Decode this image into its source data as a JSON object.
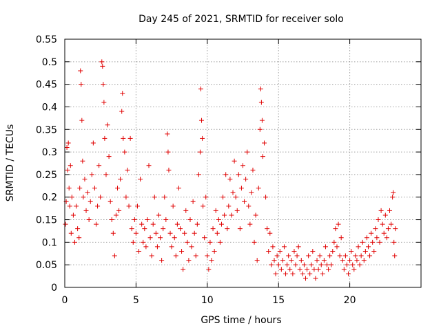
{
  "chart_data": {
    "type": "scatter",
    "title": "Day 245 of 2021, SRMTID for receiver solo",
    "xlabel": "GPS time / hours",
    "ylabel": "SRMTID / TECUs",
    "xlim": [
      0,
      25
    ],
    "ylim": [
      0,
      0.55
    ],
    "x_ticks": [
      0,
      5,
      10,
      15,
      20
    ],
    "x_tick_labels": [
      "0",
      "5",
      "10",
      "15",
      "20"
    ],
    "y_ticks": [
      0,
      0.05,
      0.1,
      0.15,
      0.2,
      0.25,
      0.3,
      0.35,
      0.4,
      0.45,
      0.5,
      0.55
    ],
    "y_tick_labels": [
      "0",
      "0.05",
      "0.1",
      "0.15",
      "0.2",
      "0.25",
      "0.3",
      "0.35",
      "0.4",
      "0.45",
      "0.5",
      "0.55"
    ],
    "grid": true,
    "marker": "+",
    "color": "#e00000",
    "series": [
      {
        "name": "SRMTID",
        "points": [
          [
            0.05,
            0.14
          ],
          [
            0.1,
            0.19
          ],
          [
            0.15,
            0.31
          ],
          [
            0.2,
            0.26
          ],
          [
            0.25,
            0.32
          ],
          [
            0.3,
            0.22
          ],
          [
            0.35,
            0.18
          ],
          [
            0.4,
            0.27
          ],
          [
            0.45,
            0.12
          ],
          [
            0.5,
            0.2
          ],
          [
            0.6,
            0.16
          ],
          [
            0.7,
            0.1
          ],
          [
            0.8,
            0.18
          ],
          [
            0.9,
            0.13
          ],
          [
            1.0,
            0.11
          ],
          [
            1.05,
            0.22
          ],
          [
            1.1,
            0.48
          ],
          [
            1.15,
            0.45
          ],
          [
            1.2,
            0.37
          ],
          [
            1.25,
            0.28
          ],
          [
            1.3,
            0.2
          ],
          [
            1.4,
            0.24
          ],
          [
            1.5,
            0.17
          ],
          [
            1.6,
            0.21
          ],
          [
            1.7,
            0.15
          ],
          [
            1.8,
            0.19
          ],
          [
            1.9,
            0.25
          ],
          [
            2.0,
            0.32
          ],
          [
            2.1,
            0.22
          ],
          [
            2.2,
            0.14
          ],
          [
            2.3,
            0.18
          ],
          [
            2.4,
            0.27
          ],
          [
            2.5,
            0.2
          ],
          [
            2.6,
            0.5
          ],
          [
            2.65,
            0.49
          ],
          [
            2.7,
            0.45
          ],
          [
            2.75,
            0.41
          ],
          [
            2.8,
            0.33
          ],
          [
            2.9,
            0.25
          ],
          [
            3.0,
            0.36
          ],
          [
            3.1,
            0.29
          ],
          [
            3.2,
            0.19
          ],
          [
            3.3,
            0.15
          ],
          [
            3.4,
            0.12
          ],
          [
            3.5,
            0.07
          ],
          [
            3.6,
            0.16
          ],
          [
            3.7,
            0.22
          ],
          [
            3.8,
            0.17
          ],
          [
            3.9,
            0.24
          ],
          [
            4.0,
            0.39
          ],
          [
            4.05,
            0.43
          ],
          [
            4.1,
            0.33
          ],
          [
            4.2,
            0.3
          ],
          [
            4.3,
            0.2
          ],
          [
            4.4,
            0.26
          ],
          [
            4.5,
            0.18
          ],
          [
            4.6,
            0.33
          ],
          [
            4.7,
            0.13
          ],
          [
            4.8,
            0.1
          ],
          [
            4.9,
            0.15
          ],
          [
            5.0,
            0.12
          ],
          [
            5.1,
            0.18
          ],
          [
            5.2,
            0.08
          ],
          [
            5.3,
            0.24
          ],
          [
            5.4,
            0.14
          ],
          [
            5.5,
            0.1
          ],
          [
            5.6,
            0.13
          ],
          [
            5.7,
            0.09
          ],
          [
            5.8,
            0.15
          ],
          [
            5.9,
            0.27
          ],
          [
            6.0,
            0.11
          ],
          [
            6.1,
            0.07
          ],
          [
            6.2,
            0.14
          ],
          [
            6.3,
            0.2
          ],
          [
            6.4,
            0.12
          ],
          [
            6.5,
            0.09
          ],
          [
            6.6,
            0.16
          ],
          [
            6.7,
            0.11
          ],
          [
            6.8,
            0.06
          ],
          [
            6.9,
            0.13
          ],
          [
            7.0,
            0.2
          ],
          [
            7.1,
            0.15
          ],
          [
            7.2,
            0.34
          ],
          [
            7.25,
            0.3
          ],
          [
            7.3,
            0.26
          ],
          [
            7.4,
            0.12
          ],
          [
            7.5,
            0.09
          ],
          [
            7.6,
            0.18
          ],
          [
            7.7,
            0.11
          ],
          [
            7.8,
            0.07
          ],
          [
            7.9,
            0.14
          ],
          [
            8.0,
            0.22
          ],
          [
            8.1,
            0.13
          ],
          [
            8.2,
            0.08
          ],
          [
            8.3,
            0.04
          ],
          [
            8.4,
            0.12
          ],
          [
            8.5,
            0.17
          ],
          [
            8.6,
            0.1
          ],
          [
            8.7,
            0.06
          ],
          [
            8.8,
            0.15
          ],
          [
            8.9,
            0.09
          ],
          [
            9.0,
            0.19
          ],
          [
            9.1,
            0.12
          ],
          [
            9.2,
            0.07
          ],
          [
            9.3,
            0.14
          ],
          [
            9.4,
            0.25
          ],
          [
            9.5,
            0.3
          ],
          [
            9.55,
            0.44
          ],
          [
            9.6,
            0.37
          ],
          [
            9.65,
            0.33
          ],
          [
            9.7,
            0.18
          ],
          [
            9.8,
            0.11
          ],
          [
            9.9,
            0.2
          ],
          [
            10.0,
            0.07
          ],
          [
            10.1,
            0.04
          ],
          [
            10.2,
            0.1
          ],
          [
            10.3,
            0.06
          ],
          [
            10.4,
            0.13
          ],
          [
            10.5,
            0.08
          ],
          [
            10.6,
            0.17
          ],
          [
            10.7,
            0.12
          ],
          [
            10.8,
            0.15
          ],
          [
            10.9,
            0.1
          ],
          [
            11.0,
            0.14
          ],
          [
            11.1,
            0.2
          ],
          [
            11.2,
            0.16
          ],
          [
            11.3,
            0.25
          ],
          [
            11.4,
            0.13
          ],
          [
            11.5,
            0.18
          ],
          [
            11.6,
            0.24
          ],
          [
            11.7,
            0.16
          ],
          [
            11.8,
            0.21
          ],
          [
            11.9,
            0.28
          ],
          [
            12.0,
            0.2
          ],
          [
            12.1,
            0.17
          ],
          [
            12.2,
            0.25
          ],
          [
            12.3,
            0.13
          ],
          [
            12.4,
            0.22
          ],
          [
            12.5,
            0.27
          ],
          [
            12.6,
            0.19
          ],
          [
            12.7,
            0.24
          ],
          [
            12.8,
            0.3
          ],
          [
            12.9,
            0.18
          ],
          [
            13.0,
            0.14
          ],
          [
            13.1,
            0.21
          ],
          [
            13.2,
            0.26
          ],
          [
            13.3,
            0.1
          ],
          [
            13.4,
            0.16
          ],
          [
            13.5,
            0.06
          ],
          [
            13.6,
            0.22
          ],
          [
            13.7,
            0.35
          ],
          [
            13.75,
            0.44
          ],
          [
            13.8,
            0.41
          ],
          [
            13.85,
            0.37
          ],
          [
            13.9,
            0.29
          ],
          [
            14.0,
            0.32
          ],
          [
            14.1,
            0.2
          ],
          [
            14.2,
            0.13
          ],
          [
            14.3,
            0.08
          ],
          [
            14.4,
            0.12
          ],
          [
            14.5,
            0.05
          ],
          [
            14.6,
            0.09
          ],
          [
            14.7,
            0.06
          ],
          [
            14.8,
            0.03
          ],
          [
            14.9,
            0.07
          ],
          [
            15.0,
            0.05
          ],
          [
            15.1,
            0.08
          ],
          [
            15.2,
            0.04
          ],
          [
            15.3,
            0.06
          ],
          [
            15.4,
            0.09
          ],
          [
            15.5,
            0.03
          ],
          [
            15.6,
            0.05
          ],
          [
            15.7,
            0.07
          ],
          [
            15.8,
            0.04
          ],
          [
            15.9,
            0.06
          ],
          [
            16.0,
            0.03
          ],
          [
            16.1,
            0.08
          ],
          [
            16.2,
            0.05
          ],
          [
            16.3,
            0.07
          ],
          [
            16.4,
            0.09
          ],
          [
            16.5,
            0.04
          ],
          [
            16.6,
            0.06
          ],
          [
            16.7,
            0.03
          ],
          [
            16.8,
            0.05
          ],
          [
            16.9,
            0.02
          ],
          [
            17.0,
            0.04
          ],
          [
            17.1,
            0.07
          ],
          [
            17.2,
            0.03
          ],
          [
            17.3,
            0.05
          ],
          [
            17.4,
            0.08
          ],
          [
            17.5,
            0.04
          ],
          [
            17.6,
            0.02
          ],
          [
            17.7,
            0.06
          ],
          [
            17.8,
            0.04
          ],
          [
            17.9,
            0.07
          ],
          [
            18.0,
            0.05
          ],
          [
            18.1,
            0.03
          ],
          [
            18.2,
            0.06
          ],
          [
            18.3,
            0.09
          ],
          [
            18.4,
            0.05
          ],
          [
            18.5,
            0.04
          ],
          [
            18.6,
            0.07
          ],
          [
            18.7,
            0.05
          ],
          [
            18.8,
            0.08
          ],
          [
            18.9,
            0.1
          ],
          [
            19.0,
            0.13
          ],
          [
            19.1,
            0.09
          ],
          [
            19.2,
            0.14
          ],
          [
            19.3,
            0.07
          ],
          [
            19.4,
            0.11
          ],
          [
            19.5,
            0.06
          ],
          [
            19.6,
            0.04
          ],
          [
            19.7,
            0.07
          ],
          [
            19.8,
            0.05
          ],
          [
            19.9,
            0.03
          ],
          [
            20.0,
            0.06
          ],
          [
            20.1,
            0.08
          ],
          [
            20.2,
            0.05
          ],
          [
            20.3,
            0.04
          ],
          [
            20.4,
            0.07
          ],
          [
            20.5,
            0.06
          ],
          [
            20.6,
            0.09
          ],
          [
            20.7,
            0.05
          ],
          [
            20.8,
            0.07
          ],
          [
            20.9,
            0.1
          ],
          [
            21.0,
            0.06
          ],
          [
            21.1,
            0.08
          ],
          [
            21.2,
            0.11
          ],
          [
            21.3,
            0.09
          ],
          [
            21.4,
            0.07
          ],
          [
            21.5,
            0.12
          ],
          [
            21.6,
            0.1
          ],
          [
            21.7,
            0.08
          ],
          [
            21.8,
            0.13
          ],
          [
            21.9,
            0.11
          ],
          [
            22.0,
            0.15
          ],
          [
            22.1,
            0.1
          ],
          [
            22.2,
            0.17
          ],
          [
            22.3,
            0.14
          ],
          [
            22.4,
            0.12
          ],
          [
            22.5,
            0.16
          ],
          [
            22.6,
            0.11
          ],
          [
            22.7,
            0.13
          ],
          [
            22.8,
            0.17
          ],
          [
            22.9,
            0.14
          ],
          [
            23.0,
            0.2
          ],
          [
            23.05,
            0.21
          ],
          [
            23.1,
            0.1
          ],
          [
            23.15,
            0.07
          ],
          [
            23.2,
            0.13
          ]
        ]
      }
    ]
  }
}
